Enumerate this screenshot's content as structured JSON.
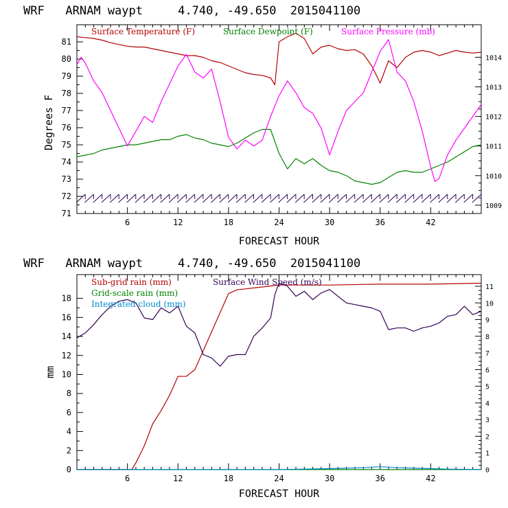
{
  "chart_data": [
    {
      "type": "line",
      "title": "WRF   ARNAM waypt     4.740, -49.650  2015041100",
      "xlabel": "FORECAST HOUR",
      "ylabel": "Degrees F",
      "xlim": [
        0,
        48
      ],
      "ylim": [
        71,
        82
      ],
      "xticks": [
        "6",
        "12",
        "18",
        "24",
        "30",
        "36",
        "42"
      ],
      "yticks": [
        "71",
        "72",
        "73",
        "74",
        "75",
        "76",
        "77",
        "78",
        "79",
        "80",
        "81"
      ],
      "y2lim": [
        1008.72,
        1015.1
      ],
      "y2ticks": [
        "1009",
        "1010",
        "1011",
        "1012",
        "1013",
        "1014"
      ],
      "colors": {
        "temperature": "#b30000",
        "dewpoint": "#008000",
        "pressure": "#ff00ff",
        "wind": "#330055"
      },
      "series": [
        {
          "name": "Surface Temperature (F)",
          "axis": "left",
          "color": "#b30000",
          "x": [
            0,
            1,
            2,
            3,
            4,
            5,
            6,
            7,
            8,
            9,
            10,
            11,
            12,
            13,
            14,
            15,
            16,
            17,
            18,
            19,
            20,
            21,
            22,
            23,
            23.5,
            24,
            25,
            26,
            27,
            28,
            29,
            30,
            31,
            32,
            33,
            34,
            35,
            36,
            37,
            38,
            39,
            40,
            41,
            42,
            43,
            44,
            45,
            46,
            47,
            48
          ],
          "y": [
            81.3,
            81.25,
            81.2,
            81.1,
            80.95,
            80.85,
            80.75,
            80.7,
            80.7,
            80.6,
            80.5,
            80.4,
            80.3,
            80.2,
            80.2,
            80.1,
            79.9,
            79.8,
            79.6,
            79.4,
            79.2,
            79.1,
            79.05,
            78.9,
            78.5,
            81.0,
            81.3,
            81.5,
            81.2,
            80.3,
            80.7,
            80.8,
            80.6,
            80.5,
            80.55,
            80.3,
            79.6,
            78.6,
            79.9,
            79.5,
            80.1,
            80.4,
            80.5,
            80.4,
            80.2,
            80.35,
            80.5,
            80.4,
            80.35,
            80.4
          ]
        },
        {
          "name": "Surface Dewpoint (F)",
          "axis": "left",
          "color": "#008000",
          "x": [
            0,
            1,
            2,
            3,
            4,
            5,
            6,
            7,
            8,
            9,
            10,
            11,
            12,
            13,
            14,
            15,
            16,
            17,
            18,
            19,
            20,
            21,
            22,
            23,
            24,
            25,
            26,
            27,
            28,
            29,
            30,
            31,
            32,
            33,
            34,
            35,
            36,
            37,
            38,
            39,
            40,
            41,
            42,
            43,
            44,
            45,
            46,
            47,
            48
          ],
          "y": [
            74.3,
            74.4,
            74.5,
            74.7,
            74.8,
            74.9,
            75.0,
            75.0,
            75.1,
            75.2,
            75.3,
            75.3,
            75.5,
            75.6,
            75.4,
            75.3,
            75.1,
            75.0,
            74.9,
            75.1,
            75.4,
            75.7,
            75.9,
            75.9,
            74.5,
            73.6,
            74.2,
            73.9,
            74.2,
            73.8,
            73.5,
            73.4,
            73.2,
            72.9,
            72.8,
            72.7,
            72.8,
            73.1,
            73.4,
            73.5,
            73.4,
            73.4,
            73.6,
            73.8,
            74.0,
            74.3,
            74.6,
            74.9,
            75.0
          ]
        },
        {
          "name": "Surface Pressure (mb)",
          "axis": "right",
          "color": "#ff00ff",
          "x": [
            0,
            0.5,
            1,
            2,
            3,
            4,
            5,
            6,
            7,
            8,
            9,
            10,
            11,
            12,
            13,
            14,
            15,
            16,
            17,
            18,
            19,
            20,
            21,
            22,
            23,
            24,
            25,
            26,
            27,
            28,
            29,
            30,
            31,
            32,
            33,
            34,
            35,
            36,
            37,
            38,
            39,
            40,
            41,
            42,
            42.5,
            43,
            44,
            45,
            46,
            47,
            48
          ],
          "y": [
            1013.75,
            1014.0,
            1013.8,
            1013.2,
            1012.8,
            1012.2,
            1011.6,
            1011.0,
            1011.5,
            1012.0,
            1011.8,
            1012.5,
            1013.1,
            1013.7,
            1014.1,
            1013.5,
            1013.3,
            1013.6,
            1012.5,
            1011.3,
            1010.9,
            1011.2,
            1011.0,
            1011.2,
            1012.0,
            1012.7,
            1013.2,
            1012.8,
            1012.3,
            1012.1,
            1011.6,
            1010.7,
            1011.5,
            1012.2,
            1012.5,
            1012.8,
            1013.5,
            1014.2,
            1014.6,
            1013.5,
            1013.2,
            1012.5,
            1011.5,
            1010.3,
            1009.8,
            1009.9,
            1010.7,
            1011.2,
            1011.6,
            1012.0,
            1012.4
          ]
        }
      ],
      "wind_barbs": {
        "label": "Surface wind barbs",
        "count": 48
      }
    },
    {
      "type": "line",
      "title": "WRF   ARNAM waypt     4.740, -49.650  2015041100",
      "xlabel": "FORECAST HOUR",
      "ylabel": "mm",
      "xlim": [
        0,
        48
      ],
      "ylim": [
        0,
        20.5
      ],
      "xticks": [
        "6",
        "12",
        "18",
        "24",
        "30",
        "36",
        "42"
      ],
      "yticks": [
        "0",
        "2",
        "4",
        "6",
        "8",
        "10",
        "12",
        "14",
        "16",
        "18"
      ],
      "y2lim": [
        0,
        11.7
      ],
      "y2ticks": [
        "0",
        "1",
        "2",
        "3",
        "4",
        "5",
        "6",
        "7",
        "8",
        "9",
        "10",
        "11"
      ],
      "series": [
        {
          "name": "Sub-grid rain (mm)",
          "axis": "left",
          "color": "#b30000",
          "x": [
            0,
            6.5,
            7,
            8,
            9,
            10,
            11,
            12,
            13,
            14,
            15,
            16,
            17,
            18,
            19,
            20,
            21,
            22,
            23,
            24,
            26,
            30,
            36,
            42,
            48
          ],
          "y": [
            0,
            0,
            0.7,
            2.5,
            4.8,
            6.2,
            7.8,
            9.8,
            9.8,
            10.5,
            12.5,
            14.5,
            16.5,
            18.5,
            18.9,
            19.0,
            19.1,
            19.2,
            19.3,
            19.4,
            19.4,
            19.4,
            19.5,
            19.5,
            19.6
          ]
        },
        {
          "name": "Surface Wind Speed (m/s)",
          "axis": "right",
          "color": "#330055",
          "x": [
            0,
            1,
            2,
            3,
            4,
            5,
            6,
            7,
            8,
            9,
            10,
            11,
            12,
            13,
            14,
            15,
            16,
            17,
            18,
            19,
            20,
            21,
            22,
            23,
            23.5,
            24,
            25,
            26,
            27,
            28,
            29,
            30,
            31,
            32,
            33,
            34,
            35,
            36,
            37,
            38,
            39,
            40,
            41,
            42,
            43,
            44,
            45,
            46,
            47,
            48
          ],
          "y": [
            7.9,
            8.2,
            8.7,
            9.3,
            9.8,
            10.1,
            10.2,
            10.0,
            9.1,
            9.0,
            9.7,
            9.4,
            9.8,
            8.6,
            8.2,
            6.9,
            6.7,
            6.2,
            6.8,
            6.9,
            6.9,
            8.0,
            8.5,
            9.1,
            10.5,
            11.2,
            11.0,
            10.4,
            10.7,
            10.2,
            10.6,
            10.8,
            10.4,
            10.0,
            9.9,
            9.8,
            9.7,
            9.5,
            8.4,
            8.5,
            8.5,
            8.3,
            8.5,
            8.6,
            8.8,
            9.2,
            9.3,
            9.8,
            9.3,
            9.5
          ]
        },
        {
          "name": "Grid-scale rain (mm)",
          "axis": "left",
          "color": "#008000",
          "x": [
            0,
            48
          ],
          "y": [
            0,
            0
          ]
        },
        {
          "name": "Integrated cloud (mm)",
          "axis": "left",
          "color": "#0088cc",
          "x": [
            0,
            24,
            30,
            34,
            36,
            38,
            40,
            44,
            48
          ],
          "y": [
            0,
            0,
            0.1,
            0.2,
            0.3,
            0.2,
            0.15,
            0.05,
            0
          ]
        }
      ]
    }
  ]
}
